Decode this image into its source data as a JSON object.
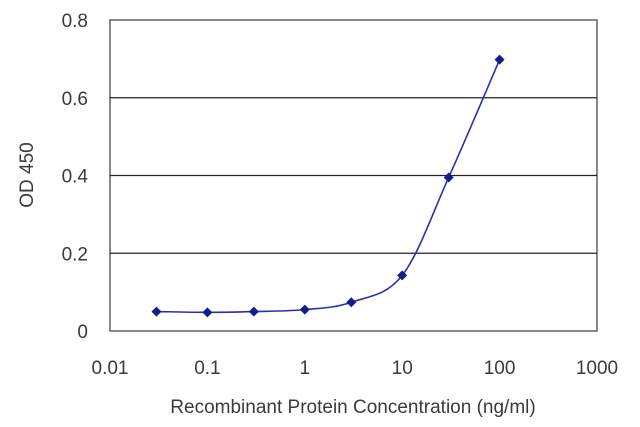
{
  "chart_data": {
    "type": "scatter",
    "title": "",
    "xlabel": "Recombinant Protein Concentration (ng/ml)",
    "ylabel": "OD 450",
    "x_scale": "log",
    "xlim": [
      0.01,
      1000
    ],
    "ylim": [
      0,
      0.8
    ],
    "x_ticks": [
      "0.01",
      "0.1",
      "1",
      "10",
      "100",
      "1000"
    ],
    "y_ticks": [
      "0",
      "0.2",
      "0.4",
      "0.6",
      "0.8"
    ],
    "grid": "horizontal",
    "legend": "none",
    "series": [
      {
        "x": [
          0.03,
          0.1,
          0.3,
          1,
          3,
          10,
          30,
          100
        ],
        "y": [
          0.05,
          0.048,
          0.05,
          0.055,
          0.074,
          0.143,
          0.395,
          0.698
        ],
        "color": "#141c8c"
      }
    ]
  }
}
